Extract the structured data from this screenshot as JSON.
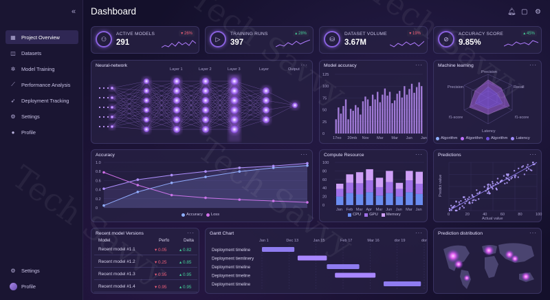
{
  "app": {
    "title": "Dashboard"
  },
  "sidebar": {
    "items": [
      {
        "label": "Project Overview",
        "icon": "grid-icon"
      },
      {
        "label": "Datasets",
        "icon": "dataset-icon"
      },
      {
        "label": "Model Training",
        "icon": "gear-icon"
      },
      {
        "label": "Performance Analysis",
        "icon": "chart-icon"
      },
      {
        "label": "Deployment Tracking",
        "icon": "rocket-icon"
      },
      {
        "label": "Settings",
        "icon": "settings-icon"
      },
      {
        "label": "Profile",
        "icon": "user-icon"
      }
    ],
    "bottom": [
      {
        "label": "Settings",
        "icon": "settings-icon"
      },
      {
        "label": "Profile",
        "icon": "avatar"
      }
    ]
  },
  "kpis": [
    {
      "label": "ACTIVE MODELS",
      "value": "291",
      "delta": "26%",
      "direction": "down"
    },
    {
      "label": "TRAINING RUNS",
      "value": "397",
      "delta": "28%",
      "direction": "up"
    },
    {
      "label": "DATASET VOLUME",
      "value": "3.67M",
      "delta": "19%",
      "direction": "down"
    },
    {
      "label": "ACCURACY SCORE",
      "value": "9.85%",
      "delta": "45%",
      "direction": "up"
    }
  ],
  "neural": {
    "title": "Neural-network",
    "layers": [
      "Layer 1",
      "Layer 2",
      "Layer 3",
      "Layer",
      "Output"
    ]
  },
  "model_accuracy": {
    "title": "Model accuracy",
    "chart_data": {
      "type": "bar",
      "yticks": [
        "125",
        "100",
        "75",
        "50",
        "25",
        "0"
      ],
      "xticks": [
        "17no",
        "20mb",
        "Nov",
        "Mar",
        "Mar",
        "Jan",
        "Jan"
      ],
      "values": [
        30,
        55,
        42,
        58,
        72,
        30,
        52,
        48,
        60,
        55,
        40,
        68,
        78,
        72,
        58,
        82,
        72,
        88,
        66,
        82,
        95,
        80,
        88,
        64,
        70,
        84,
        90,
        76,
        100,
        82,
        94,
        105,
        86,
        98,
        108,
        100
      ]
    }
  },
  "machine_learning": {
    "title": "Machine learning",
    "axes": [
      "Precision",
      "Recall",
      "f1-score",
      "Latency",
      "f1-score",
      "Precision"
    ],
    "legend": [
      "Algorithm",
      "Algorithm",
      "Algorithm",
      "Latency"
    ]
  },
  "accuracy": {
    "title": "Accuracy",
    "chart_data": {
      "type": "line",
      "yticks": [
        "1.0",
        "0.8",
        "0.6",
        "0.4",
        "0.2",
        "0"
      ],
      "series": [
        {
          "name": "Accuracy",
          "values": [
            0.05,
            0.35,
            0.55,
            0.68,
            0.8,
            0.88,
            0.93
          ]
        },
        {
          "name": "Loss",
          "values": [
            0.78,
            0.5,
            0.28,
            0.22,
            0.18,
            0.15,
            0.12
          ]
        },
        {
          "name": "",
          "values": [
            0.42,
            0.62,
            0.72,
            0.8,
            0.88,
            0.92,
            0.98
          ]
        }
      ]
    }
  },
  "compute": {
    "title": "Compute Resource",
    "chart_data": {
      "type": "bar",
      "yticks": [
        "100",
        "80",
        "60",
        "40",
        "20",
        "0"
      ],
      "categories": [
        "Jan",
        "Feb",
        "Mar",
        "Apr",
        "Mar",
        "Jun",
        "Jan",
        "Mar",
        "Jan"
      ],
      "series": [
        {
          "name": "CPU",
          "values": [
            20,
            28,
            25,
            30,
            22,
            28,
            20,
            30,
            26
          ]
        },
        {
          "name": "GPU",
          "values": [
            18,
            24,
            26,
            28,
            20,
            26,
            18,
            28,
            24
          ]
        },
        {
          "name": "Memory",
          "values": [
            12,
            20,
            26,
            26,
            22,
            26,
            14,
            22,
            28
          ]
        }
      ]
    }
  },
  "predictions": {
    "title": "Predictions",
    "xlabel": "Actual value",
    "ylabel": "Predict value",
    "xticks": [
      "0",
      "20",
      "40",
      "60",
      "80",
      "100"
    ]
  },
  "recent_models": {
    "title": "Recent model Versions",
    "columns": [
      "Model",
      "Perfo",
      "Delta"
    ],
    "rows": [
      {
        "name": "Recent model #1.1",
        "perf": "0.05",
        "perf_dir": "down",
        "delta": "0.82",
        "delta_dir": "up"
      },
      {
        "name": "Recent model #1.2",
        "perf": "0.25",
        "perf_dir": "down",
        "delta": "0.85",
        "delta_dir": "up"
      },
      {
        "name": "Recent model #1.3",
        "perf": "0.95",
        "perf_dir": "down",
        "delta": "0.95",
        "delta_dir": "up"
      },
      {
        "name": "Recent model #1.4",
        "perf": "0.95",
        "perf_dir": "down",
        "delta": "0.95",
        "delta_dir": "up"
      }
    ]
  },
  "gantt": {
    "title": "Gantt Chart",
    "dates": [
      "Jan 1",
      "Dec 13",
      "Jan 15",
      "Feb 17",
      "Mar 16",
      "dor 19",
      "dor 16"
    ],
    "rows": [
      {
        "label": "Deployment timeline",
        "start": 0.0,
        "end": 0.2
      },
      {
        "label": "Deployment tiemlinery",
        "start": 0.22,
        "end": 0.4
      },
      {
        "label": "Deployment timeline",
        "start": 0.4,
        "end": 0.6
      },
      {
        "label": "Deployment timeline",
        "start": 0.45,
        "end": 0.7
      },
      {
        "label": "Deployment timeline",
        "start": 0.75,
        "end": 0.98
      }
    ]
  },
  "distribution": {
    "title": "Prediction distribution"
  },
  "watermark": "Tech Savvy",
  "colors": {
    "accent": "#8a62e0",
    "up": "#45d09a",
    "down": "#f0607a",
    "bg": "#14102b"
  }
}
